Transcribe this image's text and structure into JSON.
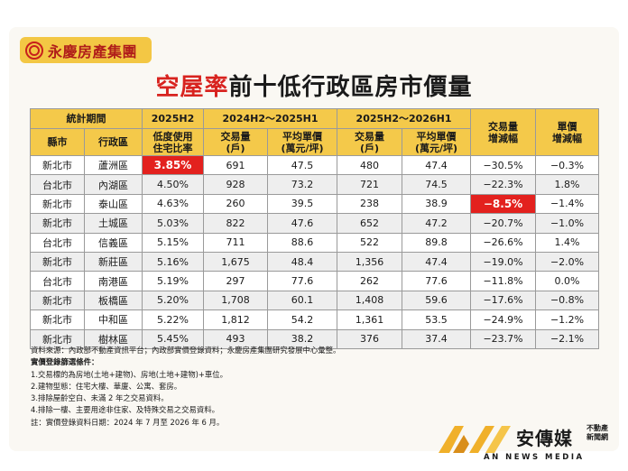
{
  "brand": {
    "name": "永慶房產集團"
  },
  "title": {
    "highlight": "空屋率",
    "rest": "前十低行政區房市價量"
  },
  "table": {
    "header_row1": {
      "period": "統計期間",
      "p2025h2": "2025H2",
      "p2024": "2024H2～2025H1",
      "p2026": "2025H2～2026H1",
      "vol_change": "交易量\n增減幅",
      "price_change": "單價\n增減幅"
    },
    "header_row2": {
      "city": "縣市",
      "district": "行政區",
      "vacancy": "低度使用\n住宅比率",
      "vol1": "交易量\n(戶)",
      "price1": "平均單價\n(萬元/坪)",
      "vol2": "交易量\n(戶)",
      "price2": "平均單價\n(萬元/坪)"
    },
    "rows": [
      {
        "city": "新北市",
        "district": "蘆洲區",
        "vacancy": "3.85%",
        "vol1": "691",
        "price1": "47.5",
        "vol2": "480",
        "price2": "47.4",
        "vol_change": "−30.5%",
        "price_change": "−0.3%"
      },
      {
        "city": "台北市",
        "district": "內湖區",
        "vacancy": "4.50%",
        "vol1": "928",
        "price1": "73.2",
        "vol2": "721",
        "price2": "74.5",
        "vol_change": "−22.3%",
        "price_change": "1.8%"
      },
      {
        "city": "新北市",
        "district": "泰山區",
        "vacancy": "4.63%",
        "vol1": "260",
        "price1": "39.5",
        "vol2": "238",
        "price2": "38.9",
        "vol_change": "−8.5%",
        "price_change": "−1.4%"
      },
      {
        "city": "新北市",
        "district": "土城區",
        "vacancy": "5.03%",
        "vol1": "822",
        "price1": "47.6",
        "vol2": "652",
        "price2": "47.2",
        "vol_change": "−20.7%",
        "price_change": "−1.0%"
      },
      {
        "city": "台北市",
        "district": "信義區",
        "vacancy": "5.15%",
        "vol1": "711",
        "price1": "88.6",
        "vol2": "522",
        "price2": "89.8",
        "vol_change": "−26.6%",
        "price_change": "1.4%"
      },
      {
        "city": "新北市",
        "district": "新莊區",
        "vacancy": "5.16%",
        "vol1": "1,675",
        "price1": "48.4",
        "vol2": "1,356",
        "price2": "47.4",
        "vol_change": "−19.0%",
        "price_change": "−2.0%"
      },
      {
        "city": "台北市",
        "district": "南港區",
        "vacancy": "5.19%",
        "vol1": "297",
        "price1": "77.6",
        "vol2": "262",
        "price2": "77.6",
        "vol_change": "−11.8%",
        "price_change": "0.0%"
      },
      {
        "city": "新北市",
        "district": "板橋區",
        "vacancy": "5.20%",
        "vol1": "1,708",
        "price1": "60.1",
        "vol2": "1,408",
        "price2": "59.6",
        "vol_change": "−17.6%",
        "price_change": "−0.8%"
      },
      {
        "city": "新北市",
        "district": "中和區",
        "vacancy": "5.22%",
        "vol1": "1,812",
        "price1": "54.2",
        "vol2": "1,361",
        "price2": "53.5",
        "vol_change": "−24.9%",
        "price_change": "−1.2%"
      },
      {
        "city": "新北市",
        "district": "樹林區",
        "vacancy": "5.45%",
        "vol1": "493",
        "price1": "38.2",
        "vol2": "376",
        "price2": "37.4",
        "vol_change": "−23.7%",
        "price_change": "−2.1%"
      }
    ],
    "highlight_color": "#e3211e"
  },
  "notes": {
    "source": "資料來源：內政部不動產資訊平台；內政部實價登錄資料；永慶房產集團研究發展中心彙整。",
    "criteria_title": "實價登錄篩選條件：",
    "criteria": [
      "1.交易標的為房地(土地+建物)、房地(土地+建物)+車位。",
      "2.建物型態：住宅大樓、華廈、公寓、套房。",
      "3.排除屋齡空白、未滿 2 年之交易資料。",
      "4.排除一樓、主要用途非住家、及特殊交易之交易資料。"
    ],
    "footnote": "註：實價登錄資料日期：2024 年 7 月至 2026 年 6 月。"
  },
  "footer": {
    "name": "安傳媒",
    "tag": "不動產\n新聞網",
    "english": "AN NEWS MEDIA"
  }
}
